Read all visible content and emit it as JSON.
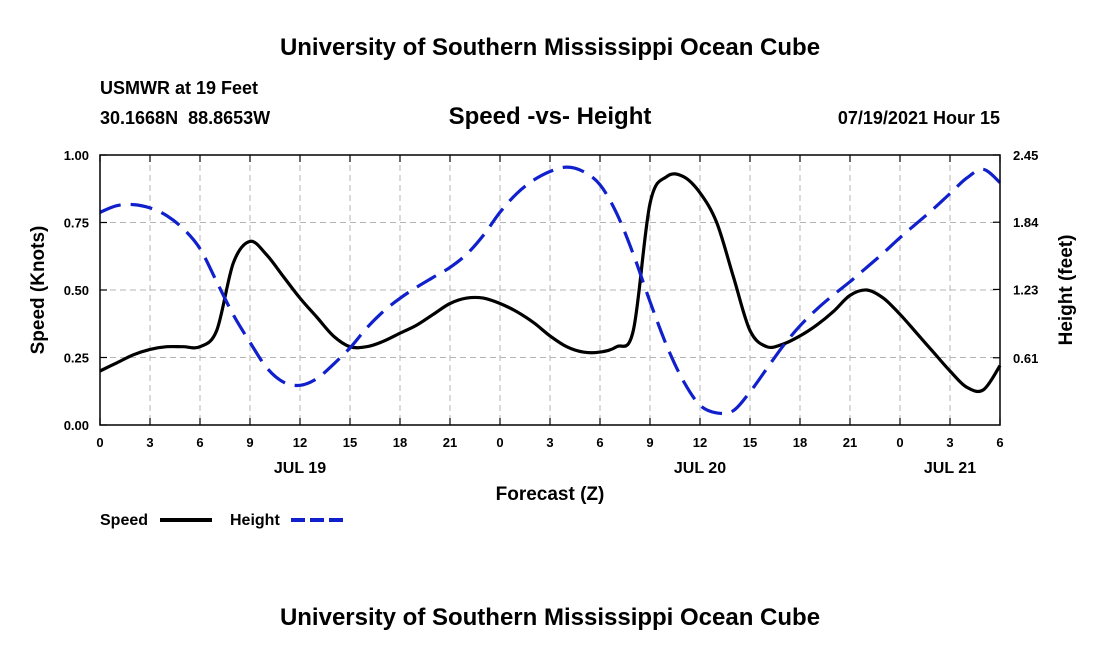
{
  "page": {
    "title_top": "University of Southern Mississippi Ocean Cube",
    "title_bottom": "University of Southern Mississippi Ocean Cube",
    "station": "USMWR at 19 Feet",
    "coords": "30.1668N  88.8653W",
    "subtitle": "Speed -vs- Height",
    "datetime": "07/19/2021 Hour 15"
  },
  "chart_data": {
    "type": "line",
    "title": "Speed -vs- Height",
    "xlabel": "Forecast (Z)",
    "ylabel_left": "Speed (Knots)",
    "ylabel_right": "Height (feet)",
    "x_hours": [
      0,
      1,
      2,
      3,
      4,
      5,
      6,
      7,
      8,
      9,
      10,
      11,
      12,
      13,
      14,
      15,
      16,
      17,
      18,
      19,
      20,
      21,
      22,
      23,
      24,
      25,
      26,
      27,
      28,
      29,
      30,
      31,
      32,
      33,
      34,
      35,
      36,
      37,
      38,
      39,
      40,
      41,
      42,
      43,
      44,
      45,
      46,
      47,
      48,
      49,
      50,
      51,
      52,
      53,
      54
    ],
    "x_tick_hours": [
      0,
      3,
      6,
      9,
      12,
      15,
      18,
      21,
      24,
      27,
      30,
      33,
      36,
      39,
      42,
      45,
      48,
      51,
      54
    ],
    "x_tick_labels": [
      "0",
      "3",
      "6",
      "9",
      "12",
      "15",
      "18",
      "21",
      "0",
      "3",
      "6",
      "9",
      "12",
      "15",
      "18",
      "21",
      "0",
      "3",
      "6"
    ],
    "date_labels": [
      {
        "hour": 12,
        "label": "JUL 19"
      },
      {
        "hour": 36,
        "label": "JUL 20"
      },
      {
        "hour": 51,
        "label": "JUL 21"
      }
    ],
    "ylim_left": [
      0,
      1
    ],
    "yticks_left": [
      0,
      0.25,
      0.5,
      0.75,
      1
    ],
    "ytick_labels_left": [
      "0.00",
      "0.25",
      "0.50",
      "0.75",
      "1.00"
    ],
    "ylim_right": [
      0,
      2.45
    ],
    "yticks_right": [
      0.61,
      1.23,
      1.84,
      2.45
    ],
    "ytick_labels_right": [
      "0.61",
      "1.23",
      "1.84",
      "2.45"
    ],
    "grid": true,
    "series": [
      {
        "name": "Speed",
        "axis": "left",
        "color": "#000000",
        "dash": "solid",
        "values": [
          0.2,
          0.23,
          0.26,
          0.28,
          0.29,
          0.29,
          0.29,
          0.35,
          0.6,
          0.68,
          0.63,
          0.55,
          0.47,
          0.4,
          0.33,
          0.29,
          0.29,
          0.31,
          0.34,
          0.37,
          0.41,
          0.45,
          0.47,
          0.47,
          0.45,
          0.42,
          0.38,
          0.33,
          0.29,
          0.27,
          0.27,
          0.29,
          0.35,
          0.82,
          0.92,
          0.92,
          0.86,
          0.75,
          0.55,
          0.35,
          0.29,
          0.3,
          0.33,
          0.37,
          0.42,
          0.48,
          0.5,
          0.47,
          0.41,
          0.34,
          0.27,
          0.2,
          0.14,
          0.13,
          0.22
        ]
      },
      {
        "name": "Height",
        "axis": "right",
        "color": "#1020cc",
        "dash": "dashed",
        "values": [
          1.93,
          1.99,
          2.0,
          1.97,
          1.9,
          1.78,
          1.6,
          1.3,
          1.0,
          0.75,
          0.52,
          0.39,
          0.36,
          0.42,
          0.55,
          0.7,
          0.88,
          1.03,
          1.15,
          1.25,
          1.34,
          1.43,
          1.55,
          1.72,
          1.93,
          2.1,
          2.22,
          2.3,
          2.34,
          2.3,
          2.18,
          1.92,
          1.55,
          1.12,
          0.72,
          0.4,
          0.18,
          0.11,
          0.13,
          0.3,
          0.51,
          0.72,
          0.9,
          1.05,
          1.18,
          1.3,
          1.43,
          1.56,
          1.7,
          1.83,
          1.96,
          2.1,
          2.24,
          2.32,
          2.2
        ]
      }
    ],
    "legend": [
      {
        "label": "Speed",
        "color": "#000000",
        "dash": "solid"
      },
      {
        "label": "Height",
        "color": "#1020cc",
        "dash": "dashed"
      }
    ],
    "legend_position": "bottom-left"
  }
}
